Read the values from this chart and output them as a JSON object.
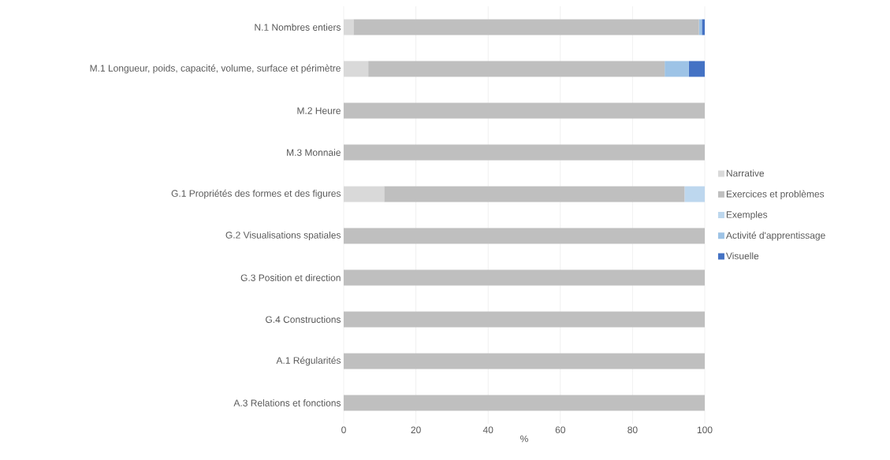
{
  "chart_data": {
    "type": "bar",
    "orientation": "horizontal",
    "stacked": true,
    "xlabel": "%",
    "categories": [
      "N.1 Nombres entiers",
      "M.1 Longueur, poids, capacité, volume, surface et périmètre",
      "M.2 Heure",
      "M.3 Monnaie",
      "G.1 Propriétés des formes et des figures",
      "G.2 Visualisations spatiales",
      "G.3 Position et direction",
      "G.4 Constructions",
      "A.1 Régularités",
      "A.3 Relations et fonctions"
    ],
    "series": [
      {
        "name": "Narrative",
        "color": "#d9d9d9",
        "values": [
          2.7,
          6.8,
          0,
          0,
          11.2,
          0,
          0,
          0,
          0,
          0
        ]
      },
      {
        "name": "Exercices et problèmes",
        "color": "#bfbfbf",
        "values": [
          95.7,
          82.1,
          100,
          100,
          83.2,
          100,
          100,
          100,
          100,
          100
        ]
      },
      {
        "name": "Exemples",
        "color": "#bdd7ee",
        "values": [
          0,
          0,
          0,
          0,
          5.6,
          0,
          0,
          0,
          0,
          0
        ]
      },
      {
        "name": "Activité d'apprentissage",
        "color": "#9dc3e6",
        "values": [
          0.8,
          6.7,
          0,
          0,
          0,
          0,
          0,
          0,
          0,
          0
        ]
      },
      {
        "name": "Visuelle",
        "color": "#4472c4",
        "values": [
          0.8,
          4.4,
          0,
          0,
          0,
          0,
          0,
          0,
          0,
          0
        ]
      }
    ],
    "xlim": [
      0,
      100
    ],
    "xticks": [
      0,
      20,
      40,
      60,
      80,
      100
    ],
    "grid": "x",
    "legend": "right"
  }
}
